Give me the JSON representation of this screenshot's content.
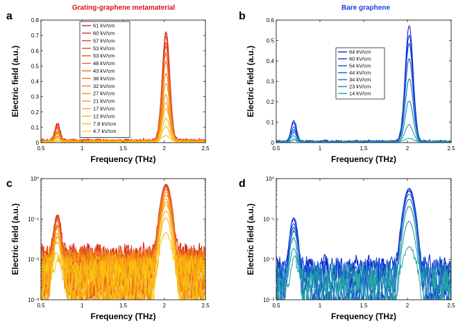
{
  "panels": [
    {
      "label": "a",
      "title": "Grating-graphene metamaterial",
      "title_color": "#e0101a",
      "scale": "linear",
      "xlim": [
        0.5,
        2.5
      ],
      "ylim": [
        0,
        0.8
      ],
      "xticks": [
        0.5,
        1,
        1.5,
        2,
        2.5
      ],
      "xtick_labels": [
        "0.5",
        "1",
        "1.5",
        "2",
        "2.5"
      ],
      "yticks": [
        0,
        0.1,
        0.2,
        0.3,
        0.4,
        0.5,
        0.6,
        0.7,
        0.8
      ],
      "ytick_labels": [
        "0",
        "0.1",
        "0.2",
        "0.3",
        "0.4",
        "0.5",
        "0.6",
        "0.7",
        "0.8"
      ],
      "xlabel": "Frequency (THz)",
      "ylabel": "Electric field (a.u.)",
      "dataset": "grating"
    },
    {
      "label": "b",
      "title": "Bare graphene",
      "title_color": "#1a3fe0",
      "scale": "linear",
      "xlim": [
        0.5,
        2.5
      ],
      "ylim": [
        0,
        0.6
      ],
      "xticks": [
        0.5,
        1,
        1.5,
        2,
        2.5
      ],
      "xtick_labels": [
        "0.5",
        "1",
        "1.5",
        "2",
        "2.5"
      ],
      "yticks": [
        0,
        0.1,
        0.2,
        0.3,
        0.4,
        0.5,
        0.6
      ],
      "ytick_labels": [
        "0",
        "0.1",
        "0.2",
        "0.3",
        "0.4",
        "0.5",
        "0.6"
      ],
      "xlabel": "Frequency (THz)",
      "ylabel": "Electric field (a.u.)",
      "dataset": "bare"
    },
    {
      "label": "c",
      "title": "",
      "title_color": "#000000",
      "scale": "log",
      "xlim": [
        0.5,
        2.5
      ],
      "ylim": [
        0.001,
        1
      ],
      "xticks": [
        0.5,
        1,
        1.5,
        2,
        2.5
      ],
      "xtick_labels": [
        "0.5",
        "1",
        "1.5",
        "2",
        "2.5"
      ],
      "yticks": [
        0.001,
        0.01,
        0.1,
        1
      ],
      "ytick_labels": [
        "10⁻³",
        "10⁻²",
        "10⁻¹",
        "10⁰"
      ],
      "xlabel": "Frequency (THz)",
      "ylabel": "Electric field (a.u.)",
      "dataset": "grating"
    },
    {
      "label": "d",
      "title": "",
      "title_color": "#000000",
      "scale": "log",
      "xlim": [
        0.5,
        2.5
      ],
      "ylim": [
        0.001,
        1
      ],
      "xticks": [
        0.5,
        1,
        1.5,
        2,
        2.5
      ],
      "xtick_labels": [
        "0.5",
        "1",
        "1.5",
        "2",
        "2.5"
      ],
      "yticks": [
        0.001,
        0.01,
        0.1,
        1
      ],
      "ytick_labels": [
        "10⁻³",
        "10⁻²",
        "10⁻¹",
        "10⁰"
      ],
      "xlabel": "Frequency (THz)",
      "ylabel": "Electric field (a.u.)",
      "dataset": "bare"
    }
  ],
  "chart_data": {
    "type": "line",
    "x_unit": "THz",
    "grating": {
      "series": [
        {
          "name": "61 kV/cm",
          "peak1": 0.11,
          "peak2": 0.72,
          "color": "#d7191c"
        },
        {
          "name": "60 kV/cm",
          "peak1": 0.105,
          "peak2": 0.7,
          "color": "#db2a1b"
        },
        {
          "name": "57 kV/cm",
          "peak1": 0.1,
          "peak2": 0.68,
          "color": "#df3a1a"
        },
        {
          "name": "53 kV/cm",
          "peak1": 0.095,
          "peak2": 0.65,
          "color": "#e34a19"
        },
        {
          "name": "53 kV/cm",
          "peak1": 0.09,
          "peak2": 0.62,
          "color": "#e65718"
        },
        {
          "name": "48 kV/cm",
          "peak1": 0.08,
          "peak2": 0.57,
          "color": "#ea6417"
        },
        {
          "name": "43 kV/cm",
          "peak1": 0.07,
          "peak2": 0.52,
          "color": "#ed7016"
        },
        {
          "name": "38 kV/cm",
          "peak1": 0.06,
          "peak2": 0.45,
          "color": "#f07c15"
        },
        {
          "name": "32 kV/cm",
          "peak1": 0.05,
          "peak2": 0.38,
          "color": "#f28714"
        },
        {
          "name": "27 kV/cm",
          "peak1": 0.04,
          "peak2": 0.3,
          "color": "#f49214"
        },
        {
          "name": "21 kV/cm",
          "peak1": 0.035,
          "peak2": 0.26,
          "color": "#f69d13"
        },
        {
          "name": "17 kV/cm",
          "peak1": 0.03,
          "peak2": 0.22,
          "color": "#f7a813"
        },
        {
          "name": "12 kV/cm",
          "peak1": 0.02,
          "peak2": 0.15,
          "color": "#f8b212"
        },
        {
          "name": "7.8 kV/cm",
          "peak1": 0.012,
          "peak2": 0.1,
          "color": "#f9bc12"
        },
        {
          "name": "4.7 kV/cm",
          "peak1": 0.008,
          "peak2": 0.045,
          "color": "#fac611"
        }
      ]
    },
    "bare": {
      "series": [
        {
          "name": "64 kV/cm",
          "peak1": 0.1,
          "peak2": 0.57,
          "color": "#0a1fd6"
        },
        {
          "name": "60 kV/cm",
          "peak1": 0.09,
          "peak2": 0.52,
          "color": "#0d33d2"
        },
        {
          "name": "54 kV/cm",
          "peak1": 0.075,
          "peak2": 0.48,
          "color": "#1047cc"
        },
        {
          "name": "44 kV/cm",
          "peak1": 0.06,
          "peak2": 0.41,
          "color": "#145bc6"
        },
        {
          "name": "34 kV/cm",
          "peak1": 0.045,
          "peak2": 0.31,
          "color": "#176fbf"
        },
        {
          "name": "23 kV/cm",
          "peak1": 0.03,
          "peak2": 0.2,
          "color": "#1c84b8"
        },
        {
          "name": "14 kV/cm",
          "peak1": 0.018,
          "peak2": 0.085,
          "color": "#2199b0"
        },
        {
          "name": "",
          "peak1": 0.008,
          "peak2": 0.02,
          "color": "#27aaa4"
        }
      ]
    }
  }
}
